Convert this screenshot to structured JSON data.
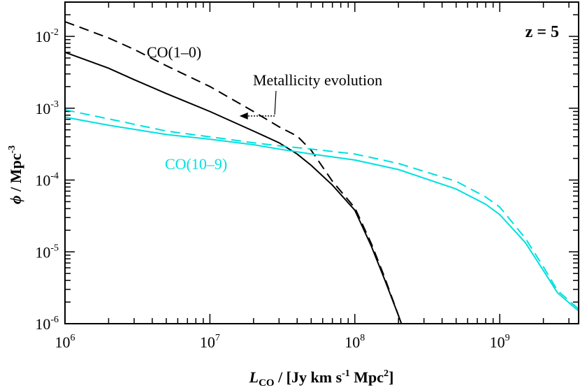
{
  "chart_data": {
    "type": "line",
    "panel_label": "z = 5",
    "xlabel": {
      "main": "L",
      "sub": "CO",
      "tail": " / [Jy km s",
      "exp1": "-1",
      "mid": " Mpc",
      "exp2": "2",
      "end": "]"
    },
    "ylabel": {
      "main": "ϕ",
      "tail": " / Mpc",
      "exp": "-3"
    },
    "xscale": "log",
    "yscale": "log",
    "xlim": [
      1000000,
      3500000000
    ],
    "ylim": [
      1e-06,
      0.03
    ],
    "xticks": [
      {
        "base": "10",
        "exp": "6",
        "value": 1000000
      },
      {
        "base": "10",
        "exp": "7",
        "value": 10000000
      },
      {
        "base": "10",
        "exp": "8",
        "value": 100000000
      },
      {
        "base": "10",
        "exp": "9",
        "value": 1000000000
      }
    ],
    "yticks": [
      {
        "base": "10",
        "exp": "-6",
        "value": 1e-06
      },
      {
        "base": "10",
        "exp": "-5",
        "value": 1e-05
      },
      {
        "base": "10",
        "exp": "-4",
        "value": 0.0001
      },
      {
        "base": "10",
        "exp": "-3",
        "value": 0.001
      },
      {
        "base": "10",
        "exp": "-2",
        "value": 0.01
      }
    ],
    "annotations": [
      {
        "text": "CO(1–0)",
        "color": "#000000"
      },
      {
        "text": "CO(10–9)",
        "color": "#00e0e0"
      },
      {
        "text": "Metallicity evolution",
        "color": "#000000"
      }
    ],
    "colors": {
      "co10": "#000000",
      "co109": "#00e0e0",
      "axis": "#000000"
    },
    "series": [
      {
        "name": "CO(1–0) solid",
        "color": "#000000",
        "dash": "solid",
        "x": [
          1000000,
          2000000,
          3000000,
          5000000,
          10000000,
          20000000,
          30000000,
          40000000,
          50000000,
          70000000,
          100000000,
          130000000,
          160000000,
          200000000,
          230000000
        ],
        "y": [
          0.006,
          0.0036,
          0.0025,
          0.0016,
          0.0009,
          0.00048,
          0.00033,
          0.00023,
          0.00016,
          8.5e-05,
          3.8e-05,
          1.2e-05,
          4.2e-06,
          1.3e-06,
          6e-07
        ]
      },
      {
        "name": "CO(1–0) dashed",
        "color": "#000000",
        "dash": "dashed",
        "x": [
          1000000,
          2000000,
          3000000,
          5000000,
          10000000,
          20000000,
          30000000,
          40000000,
          50000000,
          70000000,
          100000000,
          130000000,
          160000000,
          200000000,
          220000000
        ],
        "y": [
          0.016,
          0.0095,
          0.0066,
          0.0039,
          0.002,
          0.0009,
          0.00055,
          0.00041,
          0.00026,
          9.6e-05,
          4.1e-05,
          1.3e-05,
          4.5e-06,
          1.3e-06,
          7e-07
        ]
      },
      {
        "name": "CO(10–9) solid",
        "color": "#00e0e0",
        "dash": "solid",
        "x": [
          1000000,
          2000000,
          5000000,
          10000000,
          20000000,
          30000000,
          50000000,
          100000000,
          200000000,
          500000000,
          800000000,
          1000000000,
          1500000000,
          2000000000,
          2500000000,
          3500000000
        ],
        "y": [
          0.00075,
          0.00058,
          0.00043,
          0.00037,
          0.00031,
          0.00027,
          0.00023,
          0.00019,
          0.00014,
          7.5e-05,
          4.6e-05,
          3.3e-05,
          1.35e-05,
          5.5e-06,
          2.7e-06,
          1.5e-06
        ]
      },
      {
        "name": "CO(10–9) dashed",
        "color": "#00e0e0",
        "dash": "dashed",
        "x": [
          1000000,
          2000000,
          5000000,
          10000000,
          20000000,
          30000000,
          50000000,
          100000000,
          200000000,
          500000000,
          800000000,
          1000000000,
          1500000000,
          2000000000,
          2500000000,
          3500000000
        ],
        "y": [
          0.00095,
          0.00071,
          0.00048,
          0.0004,
          0.00033,
          0.0003,
          0.00027,
          0.00023,
          0.00017,
          9.6e-05,
          5.8e-05,
          4.2e-05,
          1.55e-05,
          6.2e-06,
          2.9e-06,
          1.6e-06
        ]
      }
    ],
    "arrow": {
      "from": [
        28000000,
        0.00078
      ],
      "to": [
        16000000,
        0.00078
      ]
    }
  }
}
